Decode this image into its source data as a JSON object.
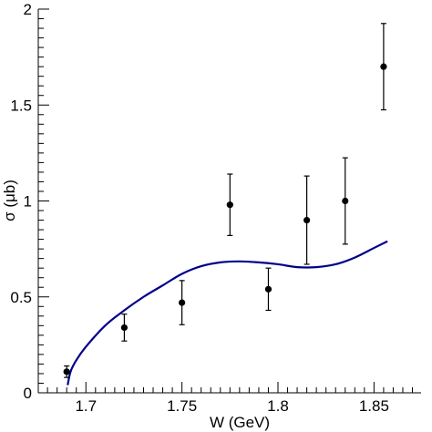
{
  "chart_data": {
    "type": "scatter",
    "title": "",
    "xlabel": "W (GeV)",
    "ylabel": "σ (μb)",
    "xlim": [
      1.6752,
      1.8745
    ],
    "ylim": [
      0,
      2
    ],
    "x_ticks": [
      1.7,
      1.75,
      1.8,
      1.85
    ],
    "x_tick_labels": [
      "1.7",
      "1.75",
      "1.8",
      "1.85"
    ],
    "y_ticks": [
      0,
      0.5,
      1,
      1.5,
      2
    ],
    "y_tick_labels": [
      "0",
      "0.5",
      "1",
      "1.5",
      "2"
    ],
    "grid": false,
    "legend": "none",
    "series": [
      {
        "kind": "points_with_errors",
        "color": "#000000",
        "points": [
          {
            "x": 1.69,
            "y": 0.11,
            "err": 0.03
          },
          {
            "x": 1.72,
            "y": 0.34,
            "err": 0.07
          },
          {
            "x": 1.75,
            "y": 0.47,
            "err": 0.115
          },
          {
            "x": 1.775,
            "y": 0.98,
            "err": 0.16
          },
          {
            "x": 1.795,
            "y": 0.54,
            "err": 0.11
          },
          {
            "x": 1.815,
            "y": 0.9,
            "err": 0.23
          },
          {
            "x": 1.835,
            "y": 1.0,
            "err": 0.225
          },
          {
            "x": 1.855,
            "y": 1.7,
            "err": 0.225
          }
        ]
      },
      {
        "kind": "curve",
        "color": "#00008b",
        "points": [
          [
            1.6905,
            0.04
          ],
          [
            1.692,
            0.11
          ],
          [
            1.695,
            0.17
          ],
          [
            1.7,
            0.24
          ],
          [
            1.71,
            0.35
          ],
          [
            1.72,
            0.43
          ],
          [
            1.73,
            0.5
          ],
          [
            1.74,
            0.56
          ],
          [
            1.75,
            0.62
          ],
          [
            1.76,
            0.66
          ],
          [
            1.77,
            0.68
          ],
          [
            1.78,
            0.685
          ],
          [
            1.79,
            0.68
          ],
          [
            1.8,
            0.67
          ],
          [
            1.81,
            0.655
          ],
          [
            1.82,
            0.655
          ],
          [
            1.83,
            0.67
          ],
          [
            1.84,
            0.705
          ],
          [
            1.85,
            0.755
          ],
          [
            1.857,
            0.79
          ]
        ]
      }
    ]
  }
}
